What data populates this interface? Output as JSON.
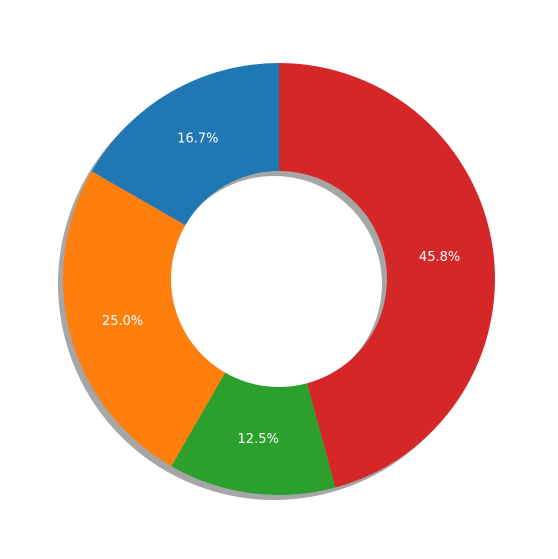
{
  "chart_data": {
    "type": "donut",
    "categories": [
      null,
      null,
      null,
      null
    ],
    "values": [
      16.7,
      25.0,
      12.5,
      45.8
    ],
    "value_labels": [
      "16.7%",
      "25.0%",
      "12.5%",
      "45.8%"
    ],
    "colors": [
      "#1f77b4",
      "#ff7f0e",
      "#2ca02c",
      "#d62728"
    ],
    "shadow": true
  }
}
